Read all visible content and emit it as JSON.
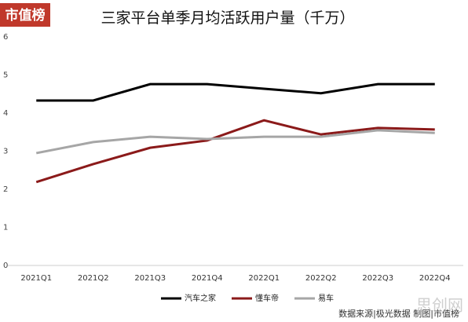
{
  "brand": "市值榜",
  "source": "数据来源|极光数据  制图|市值榜",
  "watermark": "思创网",
  "chart_data": {
    "type": "line",
    "title": "三家平台单季月均活跃用户量（千万）",
    "categories": [
      "2021Q1",
      "2021Q2",
      "2021Q3",
      "2021Q4",
      "2022Q1",
      "2022Q2",
      "2022Q3",
      "2022Q4"
    ],
    "series": [
      {
        "name": "汽车之家",
        "color": "#000000",
        "values": [
          4.33,
          4.33,
          4.76,
          4.76,
          4.64,
          4.52,
          4.76,
          4.76
        ]
      },
      {
        "name": "懂车帝",
        "color": "#8b1a1a",
        "values": [
          2.19,
          2.66,
          3.09,
          3.28,
          3.81,
          3.44,
          3.61,
          3.57
        ]
      },
      {
        "name": "易车",
        "color": "#a6a6a6",
        "values": [
          2.95,
          3.24,
          3.38,
          3.32,
          3.38,
          3.38,
          3.55,
          3.48
        ]
      }
    ],
    "ylim": [
      0,
      6
    ],
    "yticks": [
      0,
      1,
      2,
      3,
      4,
      5,
      6
    ],
    "legend": "bottom"
  }
}
